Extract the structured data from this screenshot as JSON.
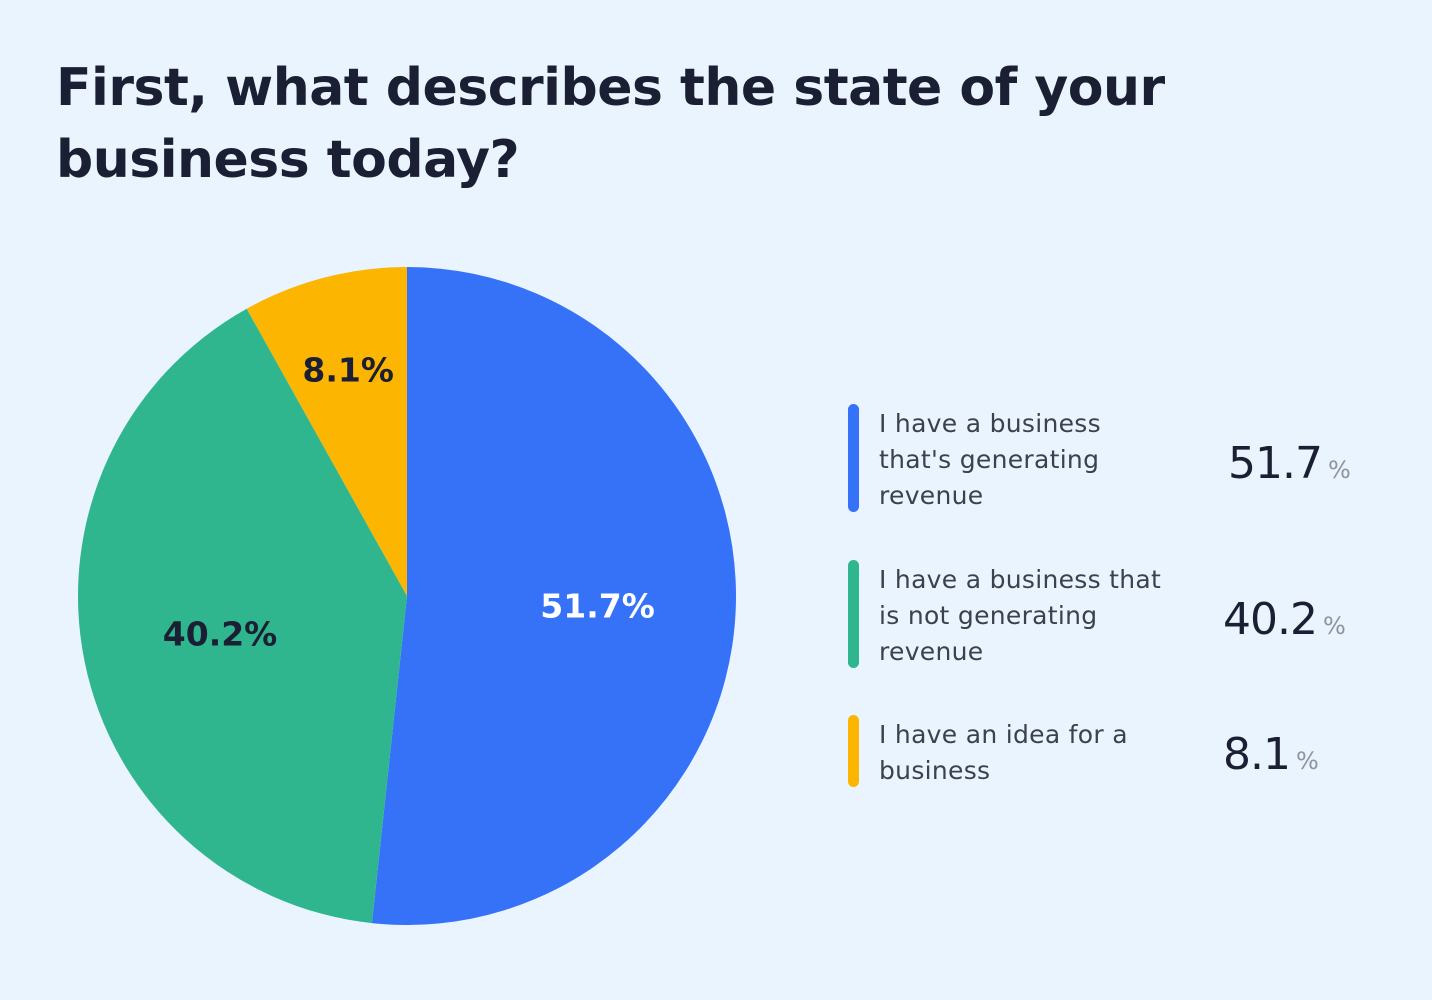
{
  "title": "First, what describes the state of your business today?",
  "chart_data": {
    "type": "pie",
    "title": "First, what describes the state of your business today?",
    "categories": [
      "I have a business that's generating revenue",
      "I have a business that is not generating revenue",
      "I have an idea for a business"
    ],
    "values": [
      51.7,
      40.2,
      8.1
    ],
    "slice_labels": [
      "51.7%",
      "40.2%",
      "8.1%"
    ],
    "colors": [
      "#3672F8",
      "#2FB68F",
      "#FCB500"
    ],
    "slice_label_colors": [
      "#FFFFFF",
      "#1B1F33",
      "#1B1F33"
    ],
    "start_angle": "12 o'clock",
    "direction": "clockwise",
    "legend_position": "right"
  },
  "legend": {
    "items": [
      {
        "label": "I have a business that's generating revenue",
        "value": "51.7",
        "unit": "%",
        "color": "#3672F8"
      },
      {
        "label": "I have a business that is not generating revenue",
        "value": "40.2",
        "unit": "%",
        "color": "#2FB68F"
      },
      {
        "label": "I have an idea for a business",
        "value": "8.1",
        "unit": "%",
        "color": "#FCB500"
      }
    ]
  }
}
